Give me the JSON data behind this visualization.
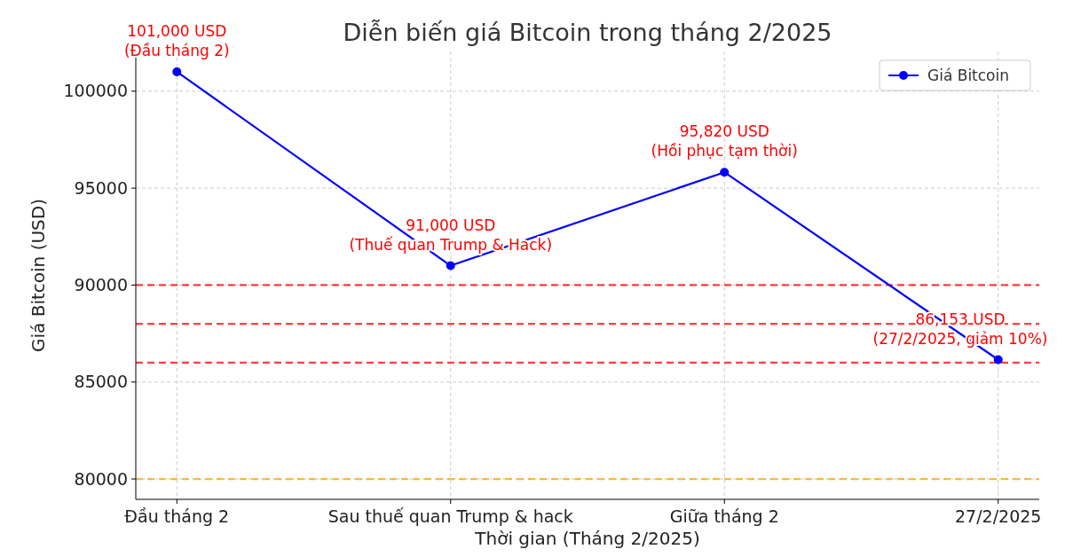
{
  "chart_data": {
    "type": "line",
    "title": "Diễn biến giá Bitcoin trong tháng 2/2025",
    "xlabel": "Thời gian (Tháng 2/2025)",
    "ylabel": "Giá Bitcoin (USD)",
    "categories": [
      "Đầu tháng 2",
      "Sau thuế quan Trump & hack",
      "Giữa tháng 2",
      "27/2/2025"
    ],
    "series": [
      {
        "name": "Giá Bitcoin",
        "color": "#0000ff",
        "values": [
          101000,
          91000,
          95820,
          86153
        ]
      }
    ],
    "ylim": [
      78950,
      102050
    ],
    "yticks": [
      80000,
      85000,
      90000,
      95000,
      100000
    ],
    "grid": true,
    "legend": "top right",
    "marker": "circle",
    "line_style": "solid",
    "ref_lines": [
      {
        "axis": "y",
        "value": 90000,
        "color": "#ff0000",
        "line_style": "dashed"
      },
      {
        "axis": "y",
        "value": 88000,
        "color": "#ff0000",
        "line_style": "dashed"
      },
      {
        "axis": "y",
        "value": 86000,
        "color": "#ff0000",
        "line_style": "dashed"
      },
      {
        "axis": "y",
        "value": 80000,
        "color": "#ffa500",
        "line_style": "dashed"
      }
    ],
    "annotations": [
      {
        "text": "101,000 USD\n(Đầu tháng 2)",
        "x": "Đầu tháng 2",
        "y": 101000
      },
      {
        "text": "91,000 USD\n(Thuế quan Trump & Hack)",
        "x": "Sau thuế quan Trump & hack",
        "y": 91000
      },
      {
        "text": "95,820 USD\n(Hồi phục tạm thời)",
        "x": "Giữa tháng 2",
        "y": 95820
      },
      {
        "text": "86,153 USD\n(27/2/2025, giảm 10%)",
        "x": "27/2/2025",
        "y": 86153
      }
    ]
  }
}
